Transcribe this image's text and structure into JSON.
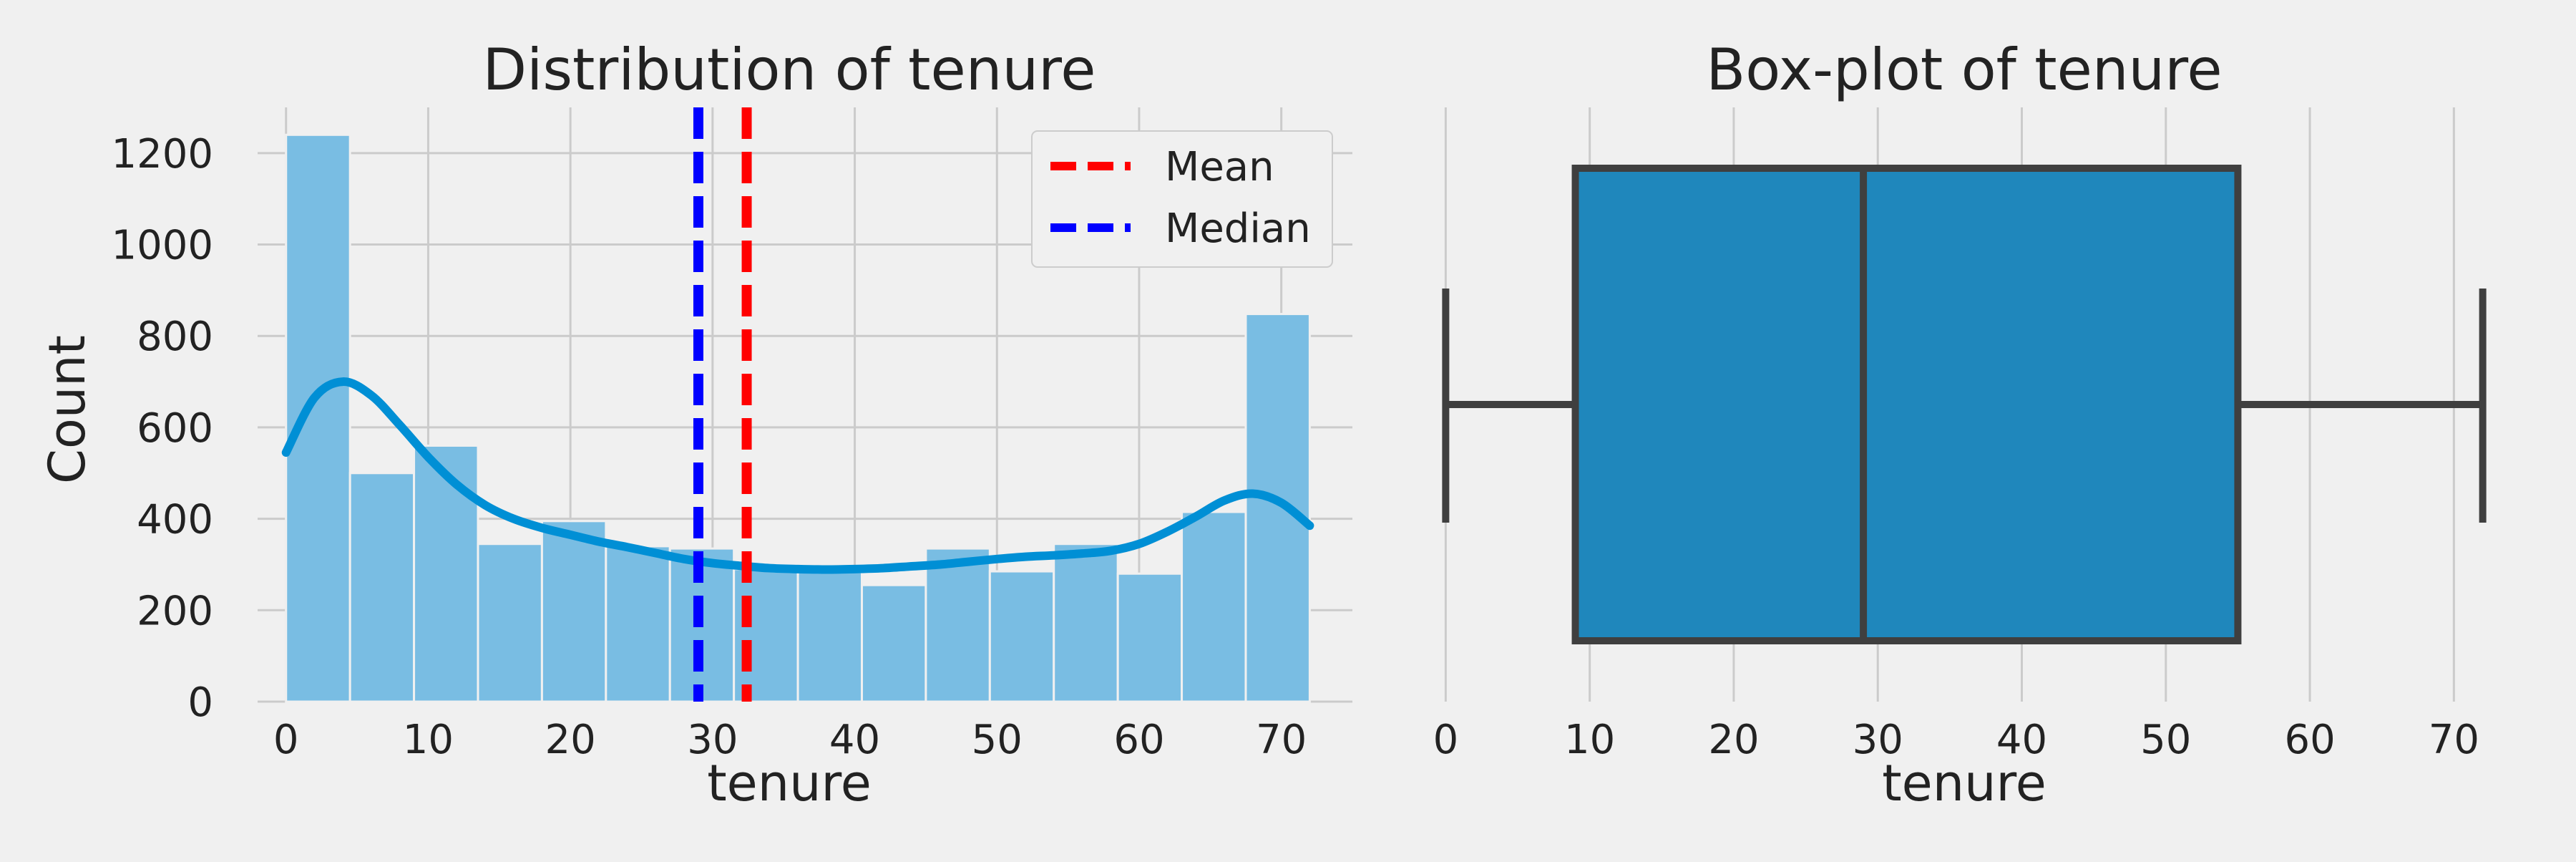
{
  "chart_data": [
    {
      "type": "histogram",
      "title": "Distribution of tenure",
      "xlabel": "tenure",
      "ylabel": "Count",
      "xlim": [
        -2,
        75
      ],
      "ylim": [
        0,
        1300
      ],
      "xticks": [
        0,
        10,
        20,
        30,
        40,
        50,
        60,
        70
      ],
      "yticks": [
        0,
        200,
        400,
        600,
        800,
        1000,
        1200
      ],
      "grid": true,
      "bar_color": "#79bde3",
      "bar_edge_color": "#f0f0f0",
      "bins": [
        {
          "x0": 0,
          "x1": 4.5,
          "count": 1240
        },
        {
          "x0": 4.5,
          "x1": 9,
          "count": 500
        },
        {
          "x0": 9,
          "x1": 13.5,
          "count": 560
        },
        {
          "x0": 13.5,
          "x1": 18,
          "count": 345
        },
        {
          "x0": 18,
          "x1": 22.5,
          "count": 395
        },
        {
          "x0": 22.5,
          "x1": 27,
          "count": 340
        },
        {
          "x0": 27,
          "x1": 31.5,
          "count": 335
        },
        {
          "x0": 31.5,
          "x1": 36,
          "count": 290
        },
        {
          "x0": 36,
          "x1": 40.5,
          "count": 290
        },
        {
          "x0": 40.5,
          "x1": 45,
          "count": 255
        },
        {
          "x0": 45,
          "x1": 49.5,
          "count": 335
        },
        {
          "x0": 49.5,
          "x1": 54,
          "count": 285
        },
        {
          "x0": 54,
          "x1": 58.5,
          "count": 345
        },
        {
          "x0": 58.5,
          "x1": 63,
          "count": 280
        },
        {
          "x0": 63,
          "x1": 67.5,
          "count": 415
        },
        {
          "x0": 67.5,
          "x1": 72,
          "count": 848
        }
      ],
      "kde": {
        "color": "#008fd5",
        "x": [
          0,
          2,
          4,
          6,
          8,
          10,
          12,
          14,
          16,
          18,
          20,
          22,
          24,
          26,
          28,
          30,
          32,
          34,
          36,
          38,
          40,
          42,
          44,
          46,
          48,
          50,
          52,
          54,
          56,
          58,
          60,
          62,
          64,
          66,
          68,
          70,
          72
        ],
        "y": [
          545,
          665,
          700,
          670,
          605,
          535,
          475,
          430,
          400,
          380,
          365,
          350,
          338,
          325,
          312,
          303,
          297,
          292,
          290,
          289,
          290,
          292,
          296,
          300,
          306,
          312,
          317,
          320,
          324,
          330,
          345,
          372,
          405,
          440,
          455,
          435,
          385
        ]
      },
      "reference_lines": [
        {
          "name": "Mean",
          "x": 32.4,
          "color": "#ff0000"
        },
        {
          "name": "Median",
          "x": 29,
          "color": "#0000ff"
        }
      ],
      "legend": {
        "placement": "top-right",
        "entries": [
          "Mean",
          "Median"
        ]
      }
    },
    {
      "type": "boxplot",
      "title": "Box-plot of tenure",
      "xlabel": "tenure",
      "xlim": [
        -3,
        75
      ],
      "xticks": [
        0,
        10,
        20,
        30,
        40,
        50,
        60,
        70
      ],
      "grid": true,
      "box_color": "#1f87bc",
      "line_color": "#3f3f3f",
      "stats": {
        "min": 0,
        "q1": 9,
        "median": 29,
        "q3": 55,
        "max": 72
      }
    }
  ]
}
